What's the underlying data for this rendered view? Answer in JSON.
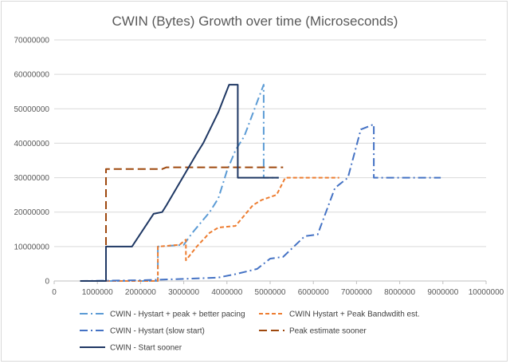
{
  "chart_data": {
    "type": "line",
    "title": "CWIN (Bytes) Growth over time (Microseconds)",
    "xlabel": "",
    "ylabel": "",
    "xlim": [
      0,
      10000000
    ],
    "ylim": [
      0,
      70000000
    ],
    "x_ticks": [
      0,
      1000000,
      2000000,
      3000000,
      4000000,
      5000000,
      6000000,
      7000000,
      8000000,
      9000000,
      10000000
    ],
    "y_ticks": [
      0,
      10000000,
      20000000,
      30000000,
      40000000,
      50000000,
      60000000,
      70000000
    ],
    "x_tick_labels": [
      "0",
      "1000000",
      "2000000",
      "3000000",
      "4000000",
      "5000000",
      "6000000",
      "7000000",
      "8000000",
      "9000000",
      "10000000"
    ],
    "y_tick_labels": [
      "0",
      "10000000",
      "20000000",
      "30000000",
      "40000000",
      "50000000",
      "60000000",
      "70000000"
    ],
    "grid": true,
    "legend_position": "bottom",
    "series": [
      {
        "name": "CWIN - Hystart + peak + better pacing",
        "color": "#5b9bd5",
        "dash": "dashdot",
        "points": [
          [
            1200000,
            0
          ],
          [
            2400000,
            0
          ],
          [
            2400000,
            10000000
          ],
          [
            3000000,
            10500000
          ],
          [
            3200000,
            14000000
          ],
          [
            3600000,
            20000000
          ],
          [
            3800000,
            24000000
          ],
          [
            4000000,
            32000000
          ],
          [
            4200000,
            38000000
          ],
          [
            4400000,
            42000000
          ],
          [
            4700000,
            52000000
          ],
          [
            4850000,
            57000000
          ],
          [
            4850000,
            30000000
          ],
          [
            5200000,
            30000000
          ]
        ]
      },
      {
        "name": "CWIN Hystart + Peak Bandwdith est.",
        "color": "#ed7d31",
        "dash": "dash",
        "points": [
          [
            1200000,
            0
          ],
          [
            2400000,
            0
          ],
          [
            2400000,
            10000000
          ],
          [
            2900000,
            10500000
          ],
          [
            3050000,
            12000000
          ],
          [
            3050000,
            6000000
          ],
          [
            3300000,
            10000000
          ],
          [
            3600000,
            14000000
          ],
          [
            3800000,
            15500000
          ],
          [
            4200000,
            16000000
          ],
          [
            4400000,
            19000000
          ],
          [
            4600000,
            22000000
          ],
          [
            4800000,
            23500000
          ],
          [
            5150000,
            25000000
          ],
          [
            5350000,
            30000000
          ],
          [
            6000000,
            30000000
          ],
          [
            6600000,
            30000000
          ]
        ]
      },
      {
        "name": "CWIN - Hystart (slow start)",
        "color": "#4472c4",
        "dash": "dashdot",
        "points": [
          [
            600000,
            0
          ],
          [
            2000000,
            200000
          ],
          [
            3000000,
            600000
          ],
          [
            3800000,
            1000000
          ],
          [
            4200000,
            2000000
          ],
          [
            4700000,
            3500000
          ],
          [
            5000000,
            6500000
          ],
          [
            5300000,
            7000000
          ],
          [
            5800000,
            13000000
          ],
          [
            6100000,
            13500000
          ],
          [
            6500000,
            27000000
          ],
          [
            6800000,
            30000000
          ],
          [
            7100000,
            44000000
          ],
          [
            7400000,
            45500000
          ],
          [
            7400000,
            30000000
          ],
          [
            8000000,
            30000000
          ],
          [
            8500000,
            30000000
          ],
          [
            8950000,
            30000000
          ]
        ]
      },
      {
        "name": "Peak estimate sooner",
        "color": "#9e480e",
        "dash": "longdash",
        "points": [
          [
            1200000,
            0
          ],
          [
            1200000,
            32500000
          ],
          [
            2500000,
            32500000
          ],
          [
            2600000,
            33000000
          ],
          [
            5300000,
            33000000
          ]
        ]
      },
      {
        "name": "CWIN - Start sooner",
        "color": "#1f3864",
        "dash": "solid",
        "points": [
          [
            600000,
            0
          ],
          [
            1200000,
            0
          ],
          [
            1200000,
            10000000
          ],
          [
            1800000,
            10000000
          ],
          [
            2300000,
            19500000
          ],
          [
            2500000,
            20000000
          ],
          [
            2600000,
            22000000
          ],
          [
            3300000,
            37000000
          ],
          [
            3450000,
            40000000
          ],
          [
            3800000,
            49000000
          ],
          [
            4050000,
            57000000
          ],
          [
            4250000,
            57000000
          ],
          [
            4250000,
            30000000
          ],
          [
            5000000,
            30000000
          ],
          [
            5200000,
            30000000
          ]
        ]
      }
    ]
  }
}
